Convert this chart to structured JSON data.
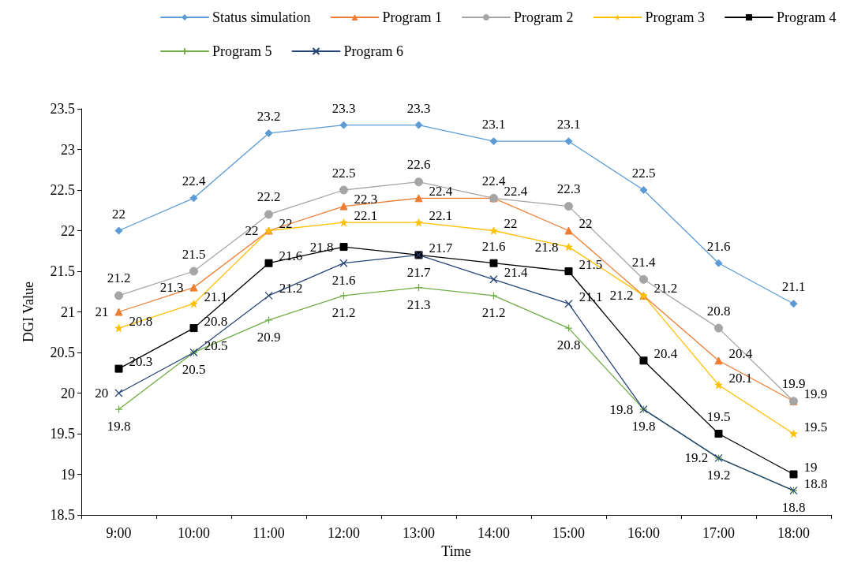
{
  "chart_data": {
    "type": "line",
    "xlabel": "Time",
    "ylabel": "DGI Value",
    "categories": [
      "9:00",
      "10:00",
      "11:00",
      "12:00",
      "13:00",
      "14:00",
      "15:00",
      "16:00",
      "17:00",
      "18:00"
    ],
    "series": [
      {
        "name": "Status simulation",
        "color": "#5b9bd5",
        "marker": "diamond",
        "values": [
          22,
          22.4,
          23.2,
          23.3,
          23.3,
          23.1,
          23.1,
          22.5,
          21.6,
          21.1
        ]
      },
      {
        "name": "Program 1",
        "color": "#ed7d31",
        "marker": "triangle",
        "values": [
          21,
          21.3,
          22,
          22.3,
          22.4,
          22.4,
          22,
          21.2,
          20.4,
          19.9
        ]
      },
      {
        "name": "Program 2",
        "color": "#a5a5a5",
        "marker": "circle",
        "values": [
          21.2,
          21.5,
          22.2,
          22.5,
          22.6,
          22.4,
          22.3,
          21.4,
          20.8,
          19.9
        ]
      },
      {
        "name": "Program 3",
        "color": "#ffc000",
        "marker": "star",
        "values": [
          20.8,
          21.1,
          22,
          22.1,
          22.1,
          22,
          21.8,
          21.2,
          20.1,
          19.5
        ]
      },
      {
        "name": "Program 4",
        "color": "#000000",
        "marker": "square",
        "values": [
          20.3,
          20.8,
          21.6,
          21.8,
          21.7,
          21.6,
          21.5,
          20.4,
          19.5,
          19
        ]
      },
      {
        "name": "Program 5",
        "color": "#70ad47",
        "marker": "cross",
        "values": [
          19.8,
          20.5,
          20.9,
          21.2,
          21.3,
          21.2,
          20.8,
          19.8,
          19.2,
          18.8
        ]
      },
      {
        "name": "Program 6",
        "color": "#264478",
        "marker": "x",
        "values": [
          20,
          20.5,
          21.2,
          21.6,
          21.7,
          21.4,
          21.1,
          19.8,
          19.2,
          18.8
        ]
      }
    ],
    "ylim": [
      18.5,
      23.5
    ],
    "yticks": [
      18.5,
      19,
      19.5,
      20,
      20.5,
      21,
      21.5,
      22,
      22.5,
      23,
      23.5
    ],
    "grid": false,
    "legend": "top",
    "data_labels": true,
    "line_style": "solid"
  }
}
